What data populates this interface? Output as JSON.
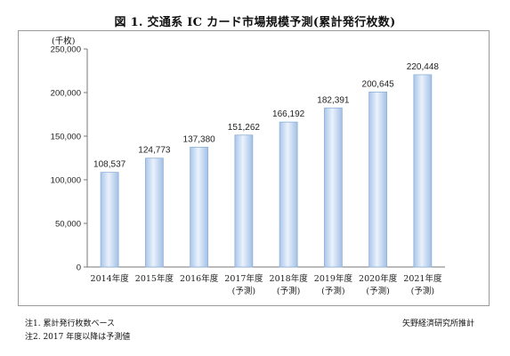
{
  "title": "図 1.  交通系 IC カード市場規模予測(累計発行枚数)",
  "chart_data": {
    "type": "bar",
    "unit_label": "(千枚)",
    "categories": [
      [
        "2014年度"
      ],
      [
        "2015年度"
      ],
      [
        "2016年度"
      ],
      [
        "2017年度",
        "(予測)"
      ],
      [
        "2018年度",
        "(予測)"
      ],
      [
        "2019年度",
        "(予測)"
      ],
      [
        "2020年度",
        "(予測)"
      ],
      [
        "2021年度",
        "(予測)"
      ]
    ],
    "values": [
      108537,
      124773,
      137380,
      151262,
      166192,
      182391,
      200645,
      220448
    ],
    "value_labels": [
      "108,537",
      "124,773",
      "137,380",
      "151,262",
      "166,192",
      "182,391",
      "200,645",
      "220,448"
    ],
    "yticks": [
      "0",
      "50,000",
      "100,000",
      "150,000",
      "200,000",
      "250,000"
    ],
    "ylim": [
      0,
      250000
    ],
    "grid": false,
    "legend": "none",
    "bar_color": "#c8dcf2",
    "bar_edge_color": "#8fb0d8"
  },
  "notes": {
    "note1": "注1.  累計発行枚数ベース",
    "note2": "注2.  2017 年度以降は予測値"
  },
  "source": "矢野経済研究所推計"
}
